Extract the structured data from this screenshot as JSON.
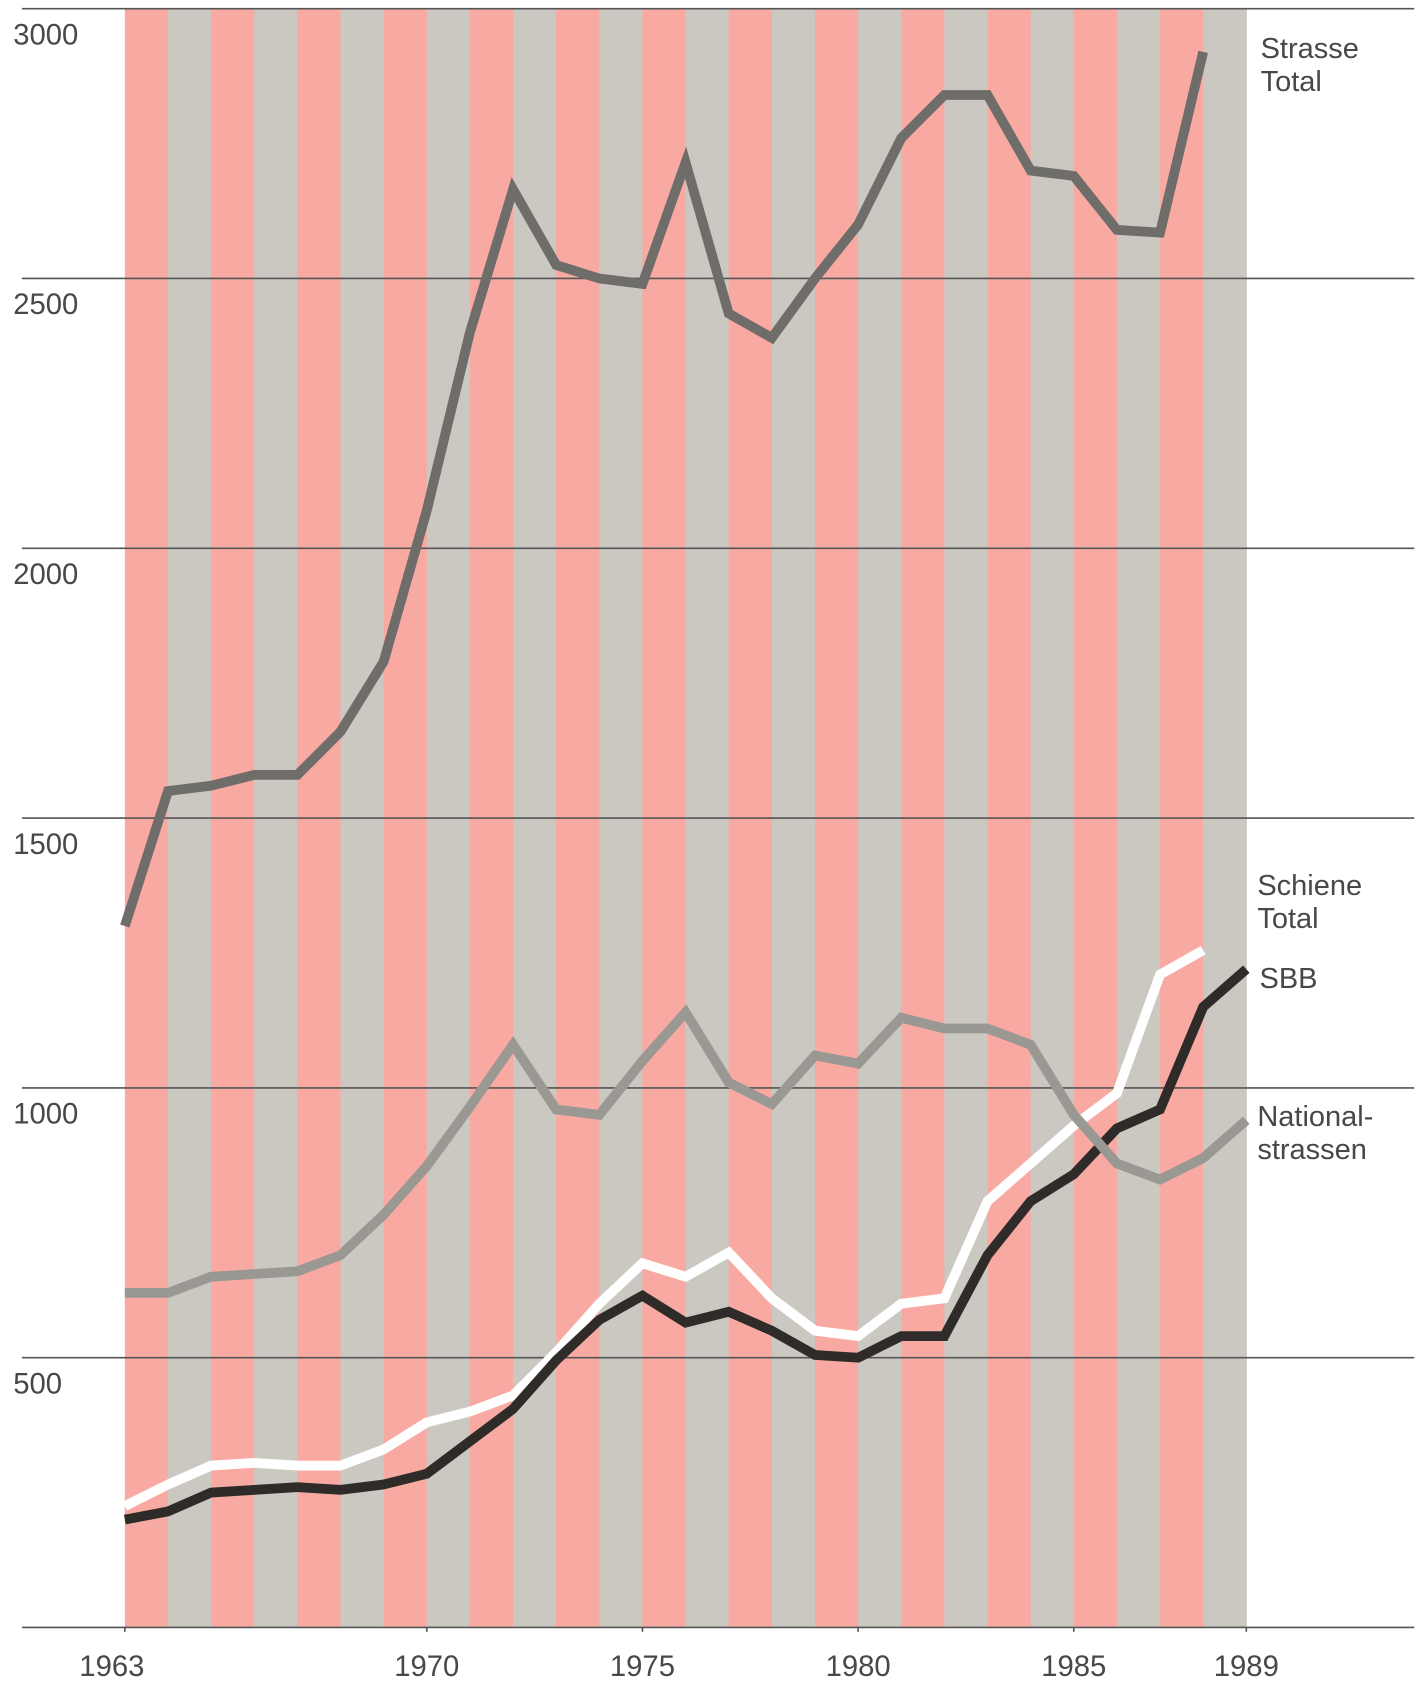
{
  "chart_data": {
    "type": "line",
    "x": [
      1963,
      1964,
      1965,
      1966,
      1967,
      1968,
      1969,
      1970,
      1971,
      1972,
      1973,
      1974,
      1975,
      1976,
      1977,
      1978,
      1979,
      1980,
      1981,
      1982,
      1983,
      1984,
      1985,
      1986,
      1987,
      1988,
      1989
    ],
    "series": [
      {
        "name": "Strasse Total",
        "color": "#6f6d69",
        "values": [
          1300,
          1550,
          1560,
          1580,
          1580,
          1660,
          1790,
          2070,
          2400,
          2665,
          2525,
          2500,
          2490,
          2715,
          2435,
          2390,
          2500,
          2600,
          2760,
          2840,
          2840,
          2700,
          2690,
          2590,
          2585,
          2920,
          null
        ]
      },
      {
        "name": "Schiene Total",
        "color": "#ffffff",
        "values": [
          225,
          265,
          300,
          305,
          300,
          300,
          330,
          380,
          400,
          430,
          510,
          600,
          675,
          650,
          695,
          610,
          550,
          540,
          600,
          610,
          790,
          860,
          930,
          990,
          1210,
          1255,
          null
        ]
      },
      {
        "name": "SBB",
        "color": "#2e2b29",
        "values": [
          200,
          215,
          250,
          255,
          260,
          255,
          265,
          285,
          345,
          405,
          495,
          570,
          615,
          565,
          585,
          550,
          505,
          500,
          540,
          540,
          690,
          790,
          840,
          925,
          960,
          1150,
          1220
        ]
      },
      {
        "name": "National-strassen",
        "color": "#9a9893",
        "values": [
          620,
          620,
          650,
          655,
          660,
          690,
          765,
          855,
          965,
          1080,
          960,
          950,
          1050,
          1140,
          1010,
          970,
          1060,
          1045,
          1130,
          1110,
          1110,
          1080,
          950,
          860,
          830,
          870,
          940
        ]
      }
    ],
    "xlim": [
      1963,
      1989
    ],
    "xticks": [
      1963,
      1970,
      1975,
      1980,
      1985,
      1989
    ],
    "ylim": [
      0,
      3000
    ],
    "yticks": [
      500,
      1000,
      1500,
      2000,
      2500,
      3000
    ],
    "grid": true
  }
}
